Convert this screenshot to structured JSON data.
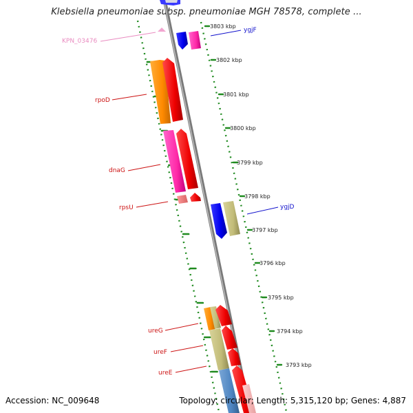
{
  "title": "Klebsiella pneumoniae subsp. pneumoniae MGH 78578, complete ...",
  "footer": {
    "accession": "Accession: NC_009648",
    "stats": "Topology: circular; Length: 5,315,120 bp; Genes: 4,887"
  },
  "colors": {
    "background": "#ffffff",
    "backbone": "#8c8c8c",
    "tick_green": "#1f8a1f",
    "label_red": "#cc1111",
    "label_blue": "#1111cc",
    "label_pink": "#e98bc0"
  },
  "scale_ticks": [
    {
      "label": "3803 kbp"
    },
    {
      "label": "3802 kbp"
    },
    {
      "label": "3801 kbp"
    },
    {
      "label": "3800 kbp"
    },
    {
      "label": "3799 kbp"
    },
    {
      "label": "3798 kbp"
    },
    {
      "label": "3797 kbp"
    },
    {
      "label": "3796 kbp"
    },
    {
      "label": "3795 kbp"
    },
    {
      "label": "3794 kbp"
    },
    {
      "label": "3793 kbp"
    }
  ],
  "gene_labels": [
    {
      "name": "KPN_03476",
      "color": "#e98bc0"
    },
    {
      "name": "ygjF",
      "color": "#1111cc"
    },
    {
      "name": "rpoD",
      "color": "#cc1111"
    },
    {
      "name": "dnaG",
      "color": "#cc1111"
    },
    {
      "name": "rpsU",
      "color": "#cc1111"
    },
    {
      "name": "ygjD",
      "color": "#1111cc"
    },
    {
      "name": "ureG",
      "color": "#cc1111"
    },
    {
      "name": "ureF",
      "color": "#cc1111"
    },
    {
      "name": "ureE",
      "color": "#cc1111"
    }
  ]
}
